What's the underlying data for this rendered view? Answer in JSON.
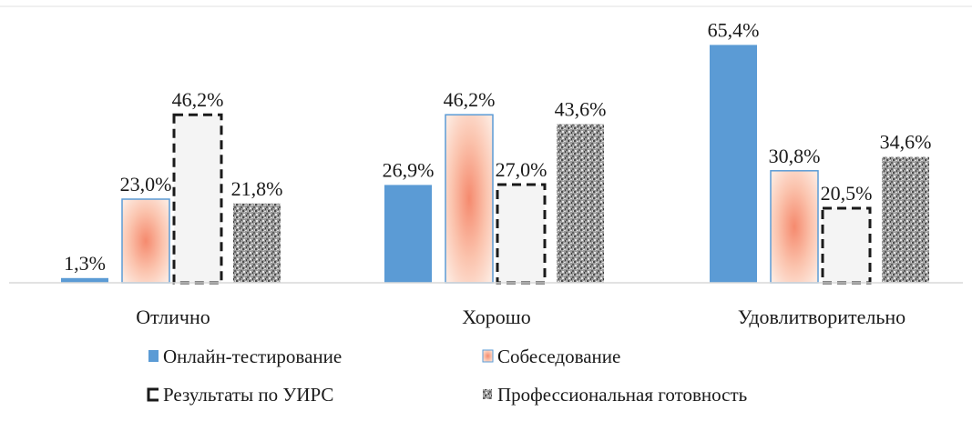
{
  "chart_data": {
    "type": "bar",
    "title": "",
    "xlabel": "",
    "ylabel": "",
    "ylim": [
      0,
      70
    ],
    "grid": false,
    "legend_position": "bottom",
    "categories": [
      "Отлично",
      "Хорошо",
      "Удовлитворительно"
    ],
    "series": [
      {
        "name": "Онлайн-тестирование",
        "values": [
          1.3,
          26.9,
          65.4
        ],
        "labels": [
          "1,3%",
          "26,9%",
          "65,4%"
        ],
        "color": "#5b9bd5",
        "style": "solid"
      },
      {
        "name": "Собеседование",
        "values": [
          23.0,
          46.2,
          30.8
        ],
        "labels": [
          "23,0%",
          "46,2%",
          "30,8%"
        ],
        "color": "#f4a582",
        "style": "gradient"
      },
      {
        "name": "Результаты по УИРС",
        "values": [
          46.2,
          27.0,
          20.5
        ],
        "labels": [
          "46,2%",
          "27,0%",
          "20,5%"
        ],
        "color": "#1a1a1a",
        "style": "dashed"
      },
      {
        "name": "Профессиональная готовность",
        "values": [
          21.8,
          43.6,
          34.6
        ],
        "labels": [
          "21,8%",
          "43,6%",
          "34,6%"
        ],
        "color": "#8c8c8c",
        "style": "granite"
      }
    ]
  }
}
